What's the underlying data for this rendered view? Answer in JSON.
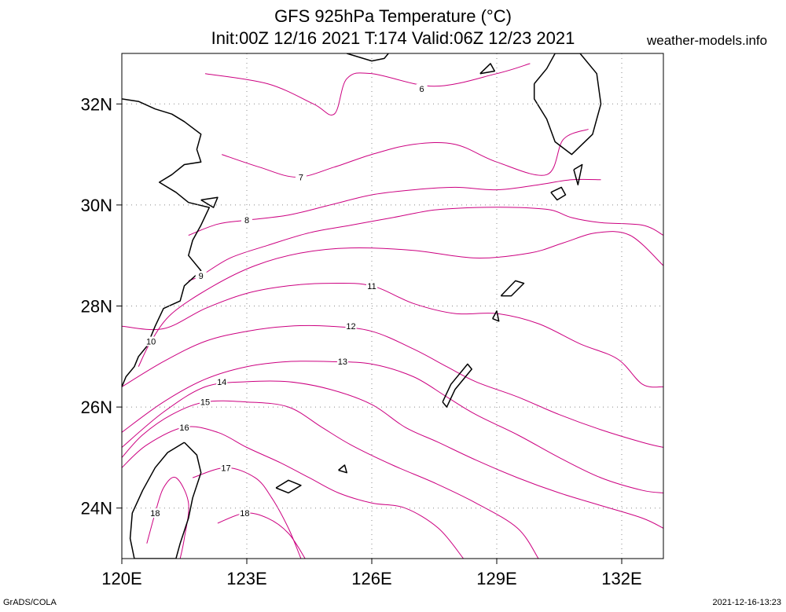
{
  "title_line1": "GFS 925hPa Temperature (°C)",
  "title_line2": "Init:00Z 12/16 2021 T:174 Valid:06Z 12/23 2021",
  "site": "weather-models.info",
  "footer_left": "GrADS/COLA",
  "footer_right": "2021-12-16-13:23",
  "map": {
    "lon_range": [
      120,
      133
    ],
    "lat_range": [
      23,
      33
    ],
    "lon_ticks": [
      {
        "value": 120,
        "label": "120E"
      },
      {
        "value": 123,
        "label": "123E"
      },
      {
        "value": 126,
        "label": "126E"
      },
      {
        "value": 129,
        "label": "129E"
      },
      {
        "value": 132,
        "label": "132E"
      }
    ],
    "lat_ticks": [
      {
        "value": 24,
        "label": "24N"
      },
      {
        "value": 26,
        "label": "26N"
      },
      {
        "value": 28,
        "label": "28N"
      },
      {
        "value": 30,
        "label": "30N"
      },
      {
        "value": 32,
        "label": "32N"
      }
    ],
    "grid": "dotted",
    "contour_color": "#cc0080",
    "coast_color": "#000000"
  },
  "contours": [
    {
      "level": "6",
      "label_at": [
        127.2,
        32.3
      ],
      "points": [
        [
          122.0,
          32.6
        ],
        [
          123.5,
          32.4
        ],
        [
          124.6,
          32.0
        ],
        [
          125.1,
          31.8
        ],
        [
          125.4,
          32.5
        ],
        [
          126.0,
          32.6
        ],
        [
          127.5,
          32.35
        ],
        [
          129.0,
          32.6
        ],
        [
          129.8,
          32.8
        ]
      ]
    },
    {
      "level": "7",
      "label_at": [
        124.3,
        30.55
      ],
      "points": [
        [
          122.4,
          31.0
        ],
        [
          123.3,
          30.75
        ],
        [
          124.2,
          30.55
        ],
        [
          125.1,
          30.75
        ],
        [
          126.0,
          31.0
        ],
        [
          127.0,
          31.2
        ],
        [
          128.0,
          31.2
        ],
        [
          129.0,
          30.85
        ],
        [
          130.2,
          30.6
        ],
        [
          130.6,
          31.3
        ],
        [
          131.2,
          31.5
        ]
      ]
    },
    {
      "level": "8",
      "label_at": [
        123.0,
        29.7
      ],
      "points": [
        [
          121.6,
          29.4
        ],
        [
          122.3,
          29.62
        ],
        [
          123.0,
          29.7
        ],
        [
          124.0,
          29.8
        ],
        [
          125.0,
          30.0
        ],
        [
          126.0,
          30.2
        ],
        [
          127.0,
          30.3
        ],
        [
          128.0,
          30.35
        ],
        [
          129.0,
          30.3
        ],
        [
          130.0,
          30.4
        ],
        [
          130.8,
          30.5
        ],
        [
          131.5,
          30.5
        ]
      ]
    },
    {
      "level": "9",
      "label_at": [
        121.9,
        28.6
      ],
      "points": [
        [
          121.6,
          28.5
        ],
        [
          121.9,
          28.6
        ],
        [
          122.6,
          28.95
        ],
        [
          123.5,
          29.2
        ],
        [
          124.5,
          29.45
        ],
        [
          125.5,
          29.6
        ],
        [
          126.5,
          29.75
        ],
        [
          127.5,
          29.9
        ],
        [
          128.5,
          29.95
        ],
        [
          129.5,
          29.95
        ],
        [
          130.3,
          29.9
        ],
        [
          130.8,
          29.75
        ],
        [
          131.5,
          29.65
        ],
        [
          132.5,
          29.6
        ],
        [
          133.0,
          29.4
        ]
      ]
    },
    {
      "level": "10",
      "label_at": [
        120.7,
        27.3
      ],
      "points": [
        [
          120.4,
          26.8
        ],
        [
          120.7,
          27.3
        ],
        [
          121.2,
          27.85
        ],
        [
          122.2,
          28.4
        ],
        [
          123.2,
          28.8
        ],
        [
          124.3,
          29.05
        ],
        [
          125.5,
          29.15
        ],
        [
          127.0,
          29.1
        ],
        [
          128.5,
          28.95
        ],
        [
          129.8,
          29.05
        ],
        [
          130.6,
          29.25
        ],
        [
          131.4,
          29.45
        ],
        [
          132.2,
          29.4
        ],
        [
          133.0,
          28.8
        ]
      ]
    },
    {
      "level": "11",
      "label_at": [
        126.0,
        28.4
      ],
      "points": [
        [
          120.0,
          27.6
        ],
        [
          121.0,
          27.55
        ],
        [
          122.0,
          27.95
        ],
        [
          123.0,
          28.25
        ],
        [
          124.0,
          28.4
        ],
        [
          125.0,
          28.45
        ],
        [
          126.0,
          28.4
        ],
        [
          127.0,
          28.05
        ],
        [
          128.0,
          27.85
        ],
        [
          129.0,
          27.85
        ],
        [
          130.0,
          27.65
        ],
        [
          131.0,
          27.25
        ],
        [
          131.9,
          26.95
        ],
        [
          132.5,
          26.45
        ],
        [
          133.0,
          26.4
        ]
      ]
    },
    {
      "level": "12",
      "label_at": [
        125.5,
        27.6
      ],
      "points": [
        [
          120.0,
          26.4
        ],
        [
          121.0,
          26.9
        ],
        [
          122.0,
          27.3
        ],
        [
          123.0,
          27.5
        ],
        [
          124.0,
          27.6
        ],
        [
          125.0,
          27.6
        ],
        [
          126.0,
          27.5
        ],
        [
          127.0,
          27.15
        ],
        [
          127.8,
          26.8
        ],
        [
          128.5,
          26.5
        ],
        [
          129.5,
          26.2
        ],
        [
          130.5,
          25.85
        ],
        [
          131.5,
          25.55
        ],
        [
          132.5,
          25.3
        ],
        [
          133.0,
          25.2
        ]
      ]
    },
    {
      "level": "13",
      "label_at": [
        125.3,
        26.9
      ],
      "points": [
        [
          120.0,
          25.5
        ],
        [
          121.0,
          26.1
        ],
        [
          122.0,
          26.55
        ],
        [
          123.0,
          26.8
        ],
        [
          124.0,
          26.9
        ],
        [
          125.0,
          26.9
        ],
        [
          126.0,
          26.85
        ],
        [
          127.0,
          26.6
        ],
        [
          127.8,
          26.2
        ],
        [
          128.5,
          25.85
        ],
        [
          129.5,
          25.45
        ],
        [
          130.5,
          25.0
        ],
        [
          131.5,
          24.6
        ],
        [
          132.5,
          24.35
        ],
        [
          133.0,
          24.3
        ]
      ]
    },
    {
      "level": "14",
      "label_at": [
        122.4,
        26.5
      ],
      "points": [
        [
          120.0,
          25.2
        ],
        [
          121.0,
          25.9
        ],
        [
          122.0,
          26.4
        ],
        [
          123.0,
          26.5
        ],
        [
          124.0,
          26.5
        ],
        [
          125.0,
          26.35
        ],
        [
          126.0,
          26.05
        ],
        [
          126.8,
          25.6
        ],
        [
          127.6,
          25.3
        ],
        [
          128.5,
          24.95
        ],
        [
          129.5,
          24.6
        ],
        [
          130.5,
          24.3
        ],
        [
          131.5,
          24.05
        ],
        [
          132.5,
          23.8
        ],
        [
          133.0,
          23.6
        ]
      ]
    },
    {
      "level": "15",
      "label_at": [
        122.0,
        26.1
      ],
      "points": [
        [
          120.0,
          25.0
        ],
        [
          120.5,
          25.45
        ],
        [
          121.2,
          25.85
        ],
        [
          122.0,
          26.1
        ],
        [
          123.0,
          26.1
        ],
        [
          124.0,
          26.0
        ],
        [
          124.8,
          25.6
        ],
        [
          125.5,
          25.25
        ],
        [
          126.5,
          24.85
        ],
        [
          127.5,
          24.5
        ],
        [
          128.5,
          24.1
        ],
        [
          129.5,
          23.6
        ],
        [
          130.0,
          23.0
        ]
      ]
    },
    {
      "level": "16",
      "label_at": [
        121.5,
        25.6
      ],
      "points": [
        [
          120.0,
          24.8
        ],
        [
          120.6,
          25.25
        ],
        [
          121.5,
          25.6
        ],
        [
          122.3,
          25.5
        ],
        [
          123.0,
          25.2
        ],
        [
          123.8,
          24.9
        ],
        [
          124.5,
          24.6
        ],
        [
          125.2,
          24.3
        ],
        [
          126.0,
          24.1
        ],
        [
          126.8,
          24.0
        ],
        [
          127.6,
          23.6
        ],
        [
          128.2,
          23.0
        ]
      ]
    },
    {
      "level": "17",
      "label_at": [
        122.5,
        24.8
      ],
      "points": [
        [
          121.7,
          24.6
        ],
        [
          122.5,
          24.8
        ],
        [
          123.2,
          24.6
        ],
        [
          123.6,
          24.2
        ],
        [
          124.0,
          23.6
        ],
        [
          124.3,
          23.0
        ]
      ]
    },
    {
      "level": "18",
      "label_at": [
        122.95,
        23.9
      ],
      "points": [
        [
          122.3,
          23.7
        ],
        [
          122.95,
          23.9
        ],
        [
          123.5,
          23.8
        ],
        [
          124.0,
          23.5
        ],
        [
          124.4,
          23.0
        ]
      ]
    },
    {
      "level": "18",
      "label_at": [
        120.8,
        23.9
      ],
      "points": [
        [
          120.6,
          23.3
        ],
        [
          120.8,
          23.9
        ],
        [
          121.0,
          24.4
        ],
        [
          121.3,
          24.6
        ],
        [
          121.6,
          24.1
        ],
        [
          121.5,
          23.4
        ],
        [
          121.4,
          23.0
        ]
      ]
    }
  ],
  "coastlines": [
    {
      "name": "china-coast",
      "points": [
        [
          120.0,
          32.1
        ],
        [
          120.4,
          32.05
        ],
        [
          120.8,
          31.9
        ],
        [
          121.2,
          31.8
        ],
        [
          121.5,
          31.65
        ],
        [
          121.9,
          31.4
        ],
        [
          121.8,
          31.1
        ],
        [
          121.9,
          30.85
        ],
        [
          121.5,
          30.8
        ],
        [
          121.2,
          30.6
        ],
        [
          120.9,
          30.45
        ],
        [
          121.3,
          30.25
        ],
        [
          121.6,
          30.05
        ],
        [
          122.1,
          29.95
        ],
        [
          121.9,
          29.6
        ],
        [
          121.7,
          29.3
        ],
        [
          121.6,
          29.0
        ],
        [
          121.9,
          28.7
        ],
        [
          121.5,
          28.4
        ],
        [
          121.4,
          28.1
        ],
        [
          121.0,
          27.95
        ],
        [
          120.8,
          27.6
        ],
        [
          120.6,
          27.2
        ],
        [
          120.4,
          27.0
        ],
        [
          120.3,
          26.8
        ],
        [
          120.1,
          26.6
        ],
        [
          120.0,
          26.4
        ]
      ]
    },
    {
      "name": "taiwan",
      "points": [
        [
          121.5,
          25.3
        ],
        [
          121.8,
          25.05
        ],
        [
          121.9,
          24.7
        ],
        [
          121.7,
          24.2
        ],
        [
          121.6,
          23.8
        ],
        [
          121.4,
          23.3
        ],
        [
          121.3,
          23.0
        ],
        [
          120.3,
          23.0
        ],
        [
          120.2,
          23.4
        ],
        [
          120.25,
          23.9
        ],
        [
          120.5,
          24.35
        ],
        [
          120.8,
          24.8
        ],
        [
          121.1,
          25.1
        ],
        [
          121.5,
          25.3
        ]
      ]
    },
    {
      "name": "korea-south",
      "points": [
        [
          125.4,
          33.0
        ],
        [
          126.0,
          32.85
        ],
        [
          126.3,
          32.9
        ],
        [
          126.4,
          33.0
        ]
      ]
    },
    {
      "name": "kyushu",
      "points": [
        [
          129.9,
          32.4
        ],
        [
          130.2,
          32.7
        ],
        [
          130.4,
          33.0
        ],
        [
          131.0,
          33.0
        ],
        [
          131.4,
          32.6
        ],
        [
          131.5,
          32.0
        ],
        [
          131.3,
          31.4
        ],
        [
          130.8,
          31.0
        ],
        [
          130.4,
          31.25
        ],
        [
          130.2,
          31.7
        ],
        [
          129.9,
          32.1
        ],
        [
          129.9,
          32.4
        ]
      ]
    },
    {
      "name": "yakushima",
      "points": [
        [
          130.3,
          30.25
        ],
        [
          130.55,
          30.35
        ],
        [
          130.65,
          30.2
        ],
        [
          130.45,
          30.1
        ],
        [
          130.3,
          30.25
        ]
      ]
    },
    {
      "name": "tanegashima",
      "points": [
        [
          130.85,
          30.7
        ],
        [
          131.05,
          30.8
        ],
        [
          130.95,
          30.4
        ],
        [
          130.85,
          30.7
        ]
      ]
    },
    {
      "name": "amami",
      "points": [
        [
          129.1,
          28.2
        ],
        [
          129.45,
          28.5
        ],
        [
          129.65,
          28.45
        ],
        [
          129.35,
          28.2
        ],
        [
          129.1,
          28.2
        ]
      ]
    },
    {
      "name": "tokunoshima",
      "points": [
        [
          128.9,
          27.75
        ],
        [
          129.0,
          27.9
        ],
        [
          129.05,
          27.7
        ],
        [
          128.9,
          27.75
        ]
      ]
    },
    {
      "name": "okinawa",
      "points": [
        [
          127.7,
          26.1
        ],
        [
          127.9,
          26.45
        ],
        [
          128.1,
          26.65
        ],
        [
          128.3,
          26.85
        ],
        [
          128.4,
          26.75
        ],
        [
          128.0,
          26.35
        ],
        [
          127.8,
          26.0
        ],
        [
          127.7,
          26.1
        ]
      ]
    },
    {
      "name": "yaeyama",
      "points": [
        [
          123.7,
          24.4
        ],
        [
          124.0,
          24.55
        ],
        [
          124.3,
          24.45
        ],
        [
          124.0,
          24.3
        ],
        [
          123.7,
          24.4
        ]
      ]
    },
    {
      "name": "miyako",
      "points": [
        [
          125.2,
          24.75
        ],
        [
          125.35,
          24.85
        ],
        [
          125.4,
          24.7
        ],
        [
          125.2,
          24.75
        ]
      ]
    },
    {
      "name": "zhoushan",
      "points": [
        [
          121.9,
          30.1
        ],
        [
          122.3,
          30.15
        ],
        [
          122.2,
          29.95
        ],
        [
          121.9,
          30.1
        ]
      ]
    },
    {
      "name": "goto",
      "points": [
        [
          128.6,
          32.6
        ],
        [
          128.85,
          32.8
        ],
        [
          128.95,
          32.65
        ],
        [
          128.6,
          32.6
        ]
      ]
    }
  ]
}
